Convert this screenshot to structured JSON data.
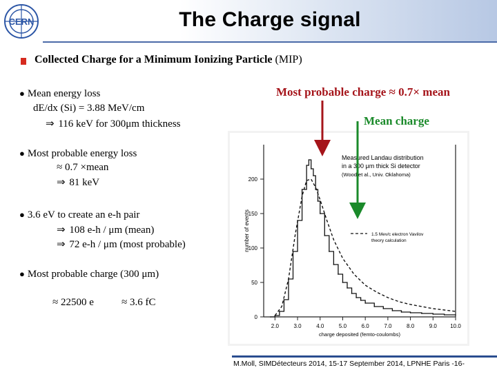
{
  "title": "The Charge signal",
  "section_heading": {
    "main": "Collected Charge for a  Minimum Ionizing Particle",
    "abbr": "(MIP)"
  },
  "bullets": [
    {
      "text": "Mean energy loss",
      "lines": [
        "dE/dx (Si) = 3.88 MeV/cm",
        "116 keV for 300μm thickness"
      ]
    },
    {
      "text": "Most probable energy loss",
      "lines": [
        "≈ 0.7 ×mean",
        "81 keV"
      ]
    },
    {
      "text": "3.6 eV to create an e-h pair",
      "lines": [
        "108 e-h / μm (mean)",
        "72 e-h / μm (most probable)"
      ]
    },
    {
      "text": "Most probable charge (300 μm)",
      "lines": [
        "≈ 22500 e",
        "≈ 3.6 fC"
      ]
    }
  ],
  "annotations": {
    "most_probable": "Most probable charge ≈ 0.7× mean",
    "mean": "Mean charge",
    "most_probable_color": "#a5141a",
    "mean_color": "#1a8a2a"
  },
  "chart_data": {
    "type": "line",
    "xlabel": "charge deposited   (femto-coulombs)",
    "ylabel": "number of events",
    "xlim": [
      1.5,
      10.0
    ],
    "ylim": [
      0,
      250
    ],
    "xticks": [
      "2.0",
      "3.0",
      "4.0",
      "5.0",
      "6.0",
      "7.0",
      "8.0",
      "9.0",
      "10.0"
    ],
    "yticks": [
      "0",
      "50",
      "100",
      "150",
      "200"
    ],
    "legend": [
      "Measured Landau distribution",
      "in a 300 μm thick Si detector",
      "(Wood et al., Univ. Oklahoma)"
    ],
    "theory_label": [
      "1.5 Mev/c electron Vavilov",
      "theory calculation"
    ],
    "series": [
      {
        "name": "Measured Landau distribution",
        "x": [
          1.8,
          2.0,
          2.2,
          2.4,
          2.6,
          2.8,
          3.0,
          3.2,
          3.4,
          3.5,
          3.6,
          3.7,
          3.8,
          3.9,
          4.0,
          4.2,
          4.4,
          4.6,
          4.8,
          5.0,
          5.2,
          5.4,
          5.6,
          5.8,
          6.0,
          6.4,
          6.8,
          7.2,
          7.6,
          8.0,
          8.5,
          9.0,
          9.5,
          10.0
        ],
        "y": [
          0,
          2,
          8,
          25,
          55,
          95,
          140,
          185,
          220,
          228,
          215,
          205,
          185,
          168,
          150,
          118,
          95,
          76,
          62,
          50,
          42,
          34,
          28,
          24,
          20,
          15,
          12,
          9,
          7,
          6,
          5,
          4,
          3,
          3
        ]
      },
      {
        "name": "1.5 Mev/c electron Vavilov",
        "x": [
          2.0,
          2.3,
          2.6,
          2.9,
          3.2,
          3.4,
          3.6,
          3.8,
          4.0,
          4.3,
          4.6,
          5.0,
          5.5,
          6.0,
          6.5,
          7.0,
          7.5,
          8.0,
          8.5,
          9.0,
          9.5,
          10.0
        ],
        "y": [
          2,
          15,
          55,
          120,
          175,
          198,
          200,
          188,
          170,
          140,
          112,
          85,
          62,
          46,
          36,
          28,
          22,
          18,
          15,
          12,
          10,
          8
        ]
      }
    ]
  },
  "footer": "M.Moll, SIMDétecteurs 2014, 15-17 September 2014, LPNHE Paris  -16-"
}
